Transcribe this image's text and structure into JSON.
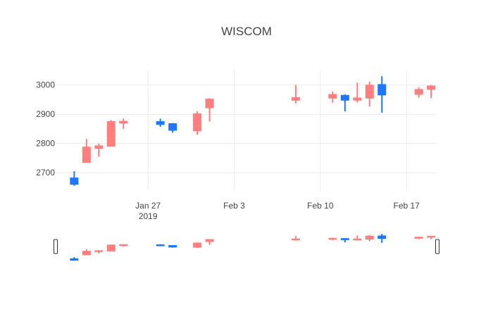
{
  "chart_data": {
    "type": "candlestick",
    "title": "WISCOM",
    "xlabel": "",
    "ylabel": "",
    "x_ticks": [
      {
        "date": "2019-01-27",
        "label": "Jan 27",
        "sublabel": "2019"
      },
      {
        "date": "2019-02-03",
        "label": "Feb 3",
        "sublabel": ""
      },
      {
        "date": "2019-02-10",
        "label": "Feb 10",
        "sublabel": ""
      },
      {
        "date": "2019-02-17",
        "label": "Feb 17",
        "sublabel": ""
      }
    ],
    "y_ticks": [
      2700,
      2800,
      2900,
      3000
    ],
    "xlim": [
      "2019-01-20",
      "2019-02-19"
    ],
    "ylim": [
      2640,
      3050
    ],
    "grid": true,
    "rangeslider": true,
    "increasing_color": "#ff7f7f",
    "decreasing_color": "#1f77ff",
    "candles": [
      {
        "date": "2019-01-21",
        "open": 2682,
        "high": 2705,
        "low": 2655,
        "close": 2660
      },
      {
        "date": "2019-01-22",
        "open": 2735,
        "high": 2815,
        "low": 2735,
        "close": 2788
      },
      {
        "date": "2019-01-23",
        "open": 2783,
        "high": 2800,
        "low": 2755,
        "close": 2792
      },
      {
        "date": "2019-01-24",
        "open": 2790,
        "high": 2880,
        "low": 2790,
        "close": 2875
      },
      {
        "date": "2019-01-25",
        "open": 2870,
        "high": 2885,
        "low": 2850,
        "close": 2876
      },
      {
        "date": "2019-01-28",
        "open": 2875,
        "high": 2885,
        "low": 2857,
        "close": 2865
      },
      {
        "date": "2019-01-29",
        "open": 2868,
        "high": 2870,
        "low": 2837,
        "close": 2845
      },
      {
        "date": "2019-01-31",
        "open": 2843,
        "high": 2910,
        "low": 2830,
        "close": 2902
      },
      {
        "date": "2019-02-01",
        "open": 2922,
        "high": 2955,
        "low": 2875,
        "close": 2952
      },
      {
        "date": "2019-02-08",
        "open": 2948,
        "high": 3000,
        "low": 2937,
        "close": 2957
      },
      {
        "date": "2019-02-11",
        "open": 2955,
        "high": 2978,
        "low": 2940,
        "close": 2968
      },
      {
        "date": "2019-02-12",
        "open": 2965,
        "high": 2968,
        "low": 2910,
        "close": 2948
      },
      {
        "date": "2019-02-13",
        "open": 2948,
        "high": 3008,
        "low": 2940,
        "close": 2956
      },
      {
        "date": "2019-02-14",
        "open": 2955,
        "high": 3012,
        "low": 2927,
        "close": 3000
      },
      {
        "date": "2019-02-15",
        "open": 3002,
        "high": 3030,
        "low": 2905,
        "close": 2966
      },
      {
        "date": "2019-02-18",
        "open": 2968,
        "high": 2992,
        "low": 2957,
        "close": 2985
      },
      {
        "date": "2019-02-19",
        "open": 2985,
        "high": 3000,
        "low": 2955,
        "close": 2997
      }
    ]
  }
}
